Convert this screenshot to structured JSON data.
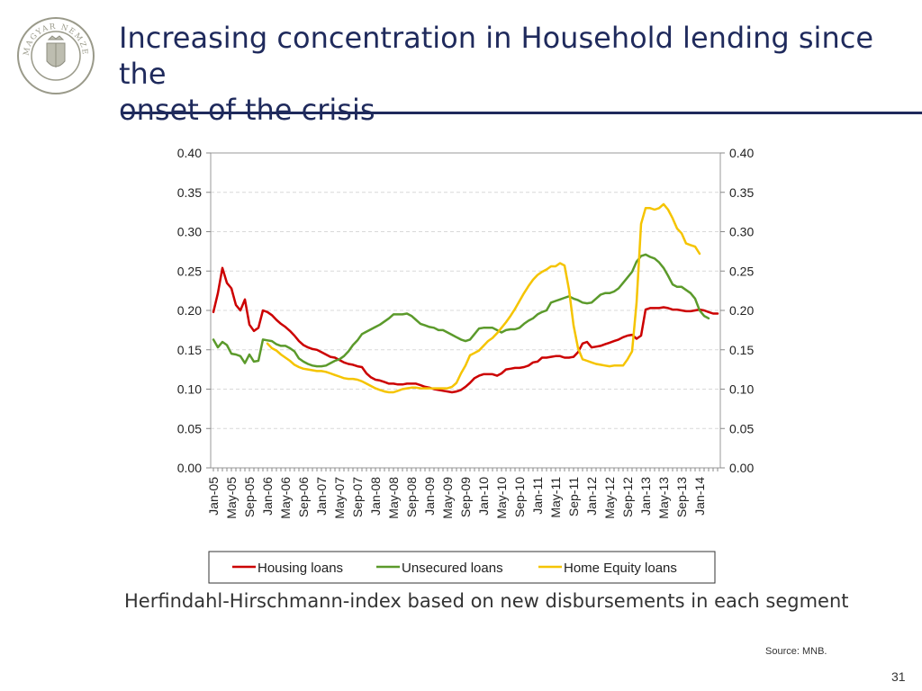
{
  "slide": {
    "title_line1": "Increasing concentration in Household lending since the",
    "title_line2": "onset of the crisis",
    "subtitle": "Herfindahl-Hirschmann-index based on new disbursements in each segment",
    "source": "Source: MNB.",
    "page_number": "31",
    "logo_text": "MAGYAR NEMZETI BANK"
  },
  "colors": {
    "title": "#1f2a5c",
    "housing": "#cc0000",
    "unsecured": "#5b9a2b",
    "home_equity": "#f5c400"
  },
  "chart_data": {
    "type": "line",
    "ylim": [
      0,
      0.4
    ],
    "yticks": [
      "0.00",
      "0.05",
      "0.10",
      "0.15",
      "0.20",
      "0.25",
      "0.30",
      "0.35",
      "0.40"
    ],
    "x_start": "2005-01",
    "x_months": 113,
    "xtick_labels": [
      "Jan-05",
      "May-05",
      "Sep-05",
      "Jan-06",
      "May-06",
      "Sep-06",
      "Jan-07",
      "May-07",
      "Sep-07",
      "Jan-08",
      "May-08",
      "Sep-08",
      "Jan-09",
      "May-09",
      "Sep-09",
      "Jan-10",
      "May-10",
      "Sep-10",
      "Jan-11",
      "May-11",
      "Sep-11",
      "Jan-12",
      "May-12",
      "Sep-12",
      "Jan-13",
      "May-13",
      "Sep-13",
      "Jan-14"
    ],
    "legend_position": "bottom",
    "series": [
      {
        "name": "Housing loans",
        "color": "#cc0000",
        "start_index": 0,
        "values": [
          0.198,
          0.222,
          0.254,
          0.235,
          0.228,
          0.207,
          0.2,
          0.214,
          0.182,
          0.174,
          0.178,
          0.2,
          0.198,
          0.194,
          0.188,
          0.183,
          0.179,
          0.174,
          0.168,
          0.161,
          0.156,
          0.153,
          0.151,
          0.15,
          0.147,
          0.144,
          0.141,
          0.14,
          0.137,
          0.134,
          0.132,
          0.131,
          0.129,
          0.128,
          0.12,
          0.115,
          0.112,
          0.111,
          0.109,
          0.107,
          0.107,
          0.106,
          0.106,
          0.107,
          0.107,
          0.107,
          0.105,
          0.103,
          0.102,
          0.1,
          0.099,
          0.098,
          0.097,
          0.096,
          0.097,
          0.099,
          0.103,
          0.108,
          0.114,
          0.117,
          0.119,
          0.119,
          0.119,
          0.117,
          0.12,
          0.125,
          0.126,
          0.127,
          0.127,
          0.128,
          0.13,
          0.134,
          0.135,
          0.14,
          0.14,
          0.141,
          0.142,
          0.142,
          0.14,
          0.14,
          0.141,
          0.147,
          0.158,
          0.16,
          0.153,
          0.154,
          0.155,
          0.157,
          0.159,
          0.161,
          0.163,
          0.166,
          0.168,
          0.169,
          0.164,
          0.168,
          0.201,
          0.203,
          0.203,
          0.203,
          0.204,
          0.203,
          0.201,
          0.201,
          0.2,
          0.199,
          0.199,
          0.2,
          0.201,
          0.2,
          0.198,
          0.196,
          0.196
        ]
      },
      {
        "name": "Unsecured loans",
        "color": "#5b9a2b",
        "start_index": 0,
        "values": [
          0.163,
          0.153,
          0.16,
          0.156,
          0.145,
          0.144,
          0.142,
          0.133,
          0.144,
          0.135,
          0.136,
          0.163,
          0.162,
          0.161,
          0.157,
          0.155,
          0.155,
          0.152,
          0.148,
          0.139,
          0.135,
          0.132,
          0.13,
          0.129,
          0.129,
          0.13,
          0.133,
          0.136,
          0.138,
          0.142,
          0.148,
          0.156,
          0.162,
          0.17,
          0.173,
          0.176,
          0.179,
          0.182,
          0.186,
          0.19,
          0.195,
          0.195,
          0.195,
          0.196,
          0.193,
          0.188,
          0.183,
          0.181,
          0.179,
          0.178,
          0.175,
          0.175,
          0.172,
          0.169,
          0.166,
          0.163,
          0.161,
          0.163,
          0.17,
          0.177,
          0.178,
          0.178,
          0.178,
          0.175,
          0.172,
          0.175,
          0.176,
          0.176,
          0.178,
          0.183,
          0.187,
          0.19,
          0.195,
          0.198,
          0.2,
          0.21,
          0.212,
          0.214,
          0.216,
          0.218,
          0.215,
          0.213,
          0.21,
          0.209,
          0.21,
          0.215,
          0.22,
          0.222,
          0.222,
          0.224,
          0.228,
          0.235,
          0.242,
          0.249,
          0.262,
          0.269,
          0.271,
          0.268,
          0.266,
          0.261,
          0.254,
          0.244,
          0.233,
          0.23,
          0.23,
          0.226,
          0.222,
          0.215,
          0.2,
          0.193,
          0.19
        ]
      },
      {
        "name": "Home Equity loans",
        "color": "#f5c400",
        "start_index": 12,
        "values": [
          0.158,
          0.152,
          0.149,
          0.144,
          0.14,
          0.136,
          0.131,
          0.128,
          0.126,
          0.125,
          0.124,
          0.123,
          0.123,
          0.122,
          0.12,
          0.118,
          0.116,
          0.114,
          0.113,
          0.113,
          0.112,
          0.11,
          0.107,
          0.104,
          0.101,
          0.099,
          0.097,
          0.096,
          0.096,
          0.098,
          0.1,
          0.101,
          0.102,
          0.102,
          0.101,
          0.101,
          0.101,
          0.101,
          0.101,
          0.101,
          0.101,
          0.103,
          0.108,
          0.12,
          0.13,
          0.143,
          0.146,
          0.149,
          0.155,
          0.161,
          0.165,
          0.171,
          0.178,
          0.185,
          0.193,
          0.202,
          0.212,
          0.222,
          0.231,
          0.239,
          0.245,
          0.249,
          0.252,
          0.256,
          0.256,
          0.26,
          0.257,
          0.226,
          0.181,
          0.152,
          0.138,
          0.136,
          0.134,
          0.132,
          0.131,
          0.13,
          0.129,
          0.13,
          0.13,
          0.13,
          0.138,
          0.148,
          0.21,
          0.31,
          0.33,
          0.33,
          0.328,
          0.33,
          0.335,
          0.328,
          0.317,
          0.304,
          0.298,
          0.285,
          0.283,
          0.281,
          0.272
        ]
      }
    ]
  }
}
